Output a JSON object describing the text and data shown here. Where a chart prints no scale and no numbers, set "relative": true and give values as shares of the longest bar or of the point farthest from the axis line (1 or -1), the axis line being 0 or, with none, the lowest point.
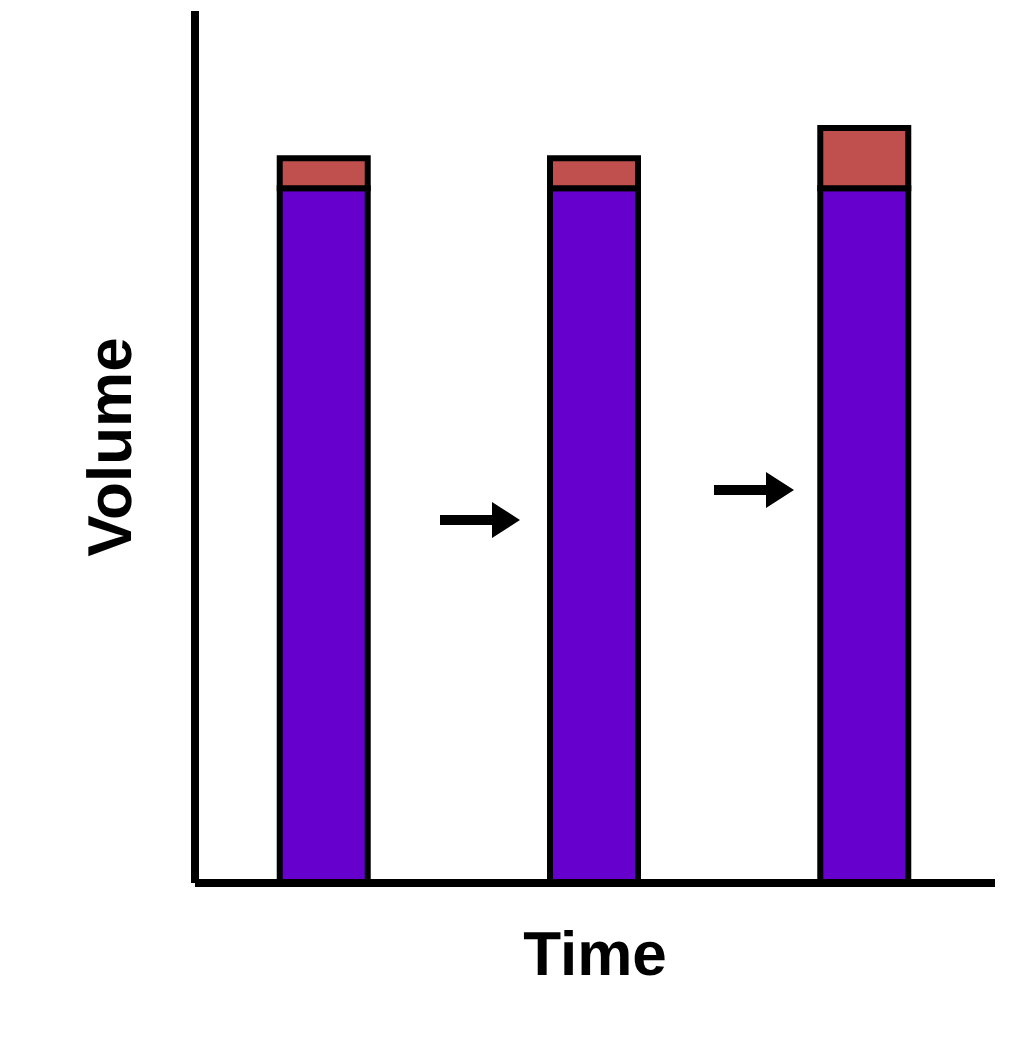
{
  "chart_data": {
    "type": "bar",
    "stacked": true,
    "relative": true,
    "xlabel": "Time",
    "ylabel": "Volume",
    "categories": [
      null,
      null,
      null
    ],
    "series": [
      {
        "color": "#6600cc",
        "values": [
          0.92,
          0.92,
          0.92
        ]
      },
      {
        "color": "#c0504d",
        "values": [
          0.04,
          0.04,
          0.08
        ]
      }
    ]
  }
}
